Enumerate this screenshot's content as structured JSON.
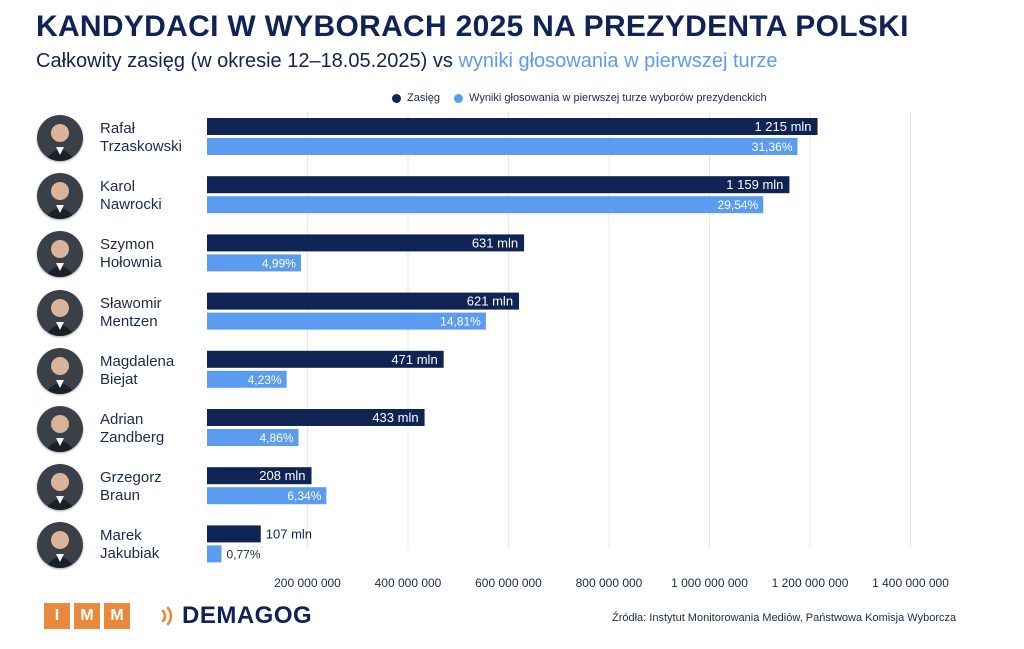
{
  "header": {
    "title": "KANDYDACI W WYBORACH 2025 NA PREZYDENTA POLSKI",
    "subtitle_main": "Całkowity zasięg (w okresie 12–18.05.2025) vs ",
    "subtitle_accent": "wyniki głosowania w pierwszej turze"
  },
  "legend": {
    "reach_label": "Zasięg",
    "votes_label": "Wyniki głosowania w pierwszej turze wyborów prezydenckich"
  },
  "colors": {
    "reach": "#0f2455",
    "votes": "#5b9cf0",
    "brand_orange": "#e8893c"
  },
  "candidates": [
    {
      "first": "Rafał",
      "last": "Trzaskowski"
    },
    {
      "first": "Karol",
      "last": "Nawrocki"
    },
    {
      "first": "Szymon",
      "last": "Hołownia"
    },
    {
      "first": "Sławomir",
      "last": "Mentzen"
    },
    {
      "first": "Magdalena",
      "last": "Biejat"
    },
    {
      "first": "Adrian",
      "last": "Zandberg"
    },
    {
      "first": "Grzegorz",
      "last": "Braun"
    },
    {
      "first": "Marek",
      "last": "Jakubiak"
    }
  ],
  "chart_data": {
    "type": "bar",
    "orientation": "horizontal",
    "categories": [
      "Rafał Trzaskowski",
      "Karol Nawrocki",
      "Szymon Hołownia",
      "Sławomir Mentzen",
      "Magdalena Biejat",
      "Adrian Zandberg",
      "Grzegorz Braun",
      "Marek Jakubiak"
    ],
    "series": [
      {
        "name": "Zasięg",
        "values": [
          1215000000,
          1159000000,
          631000000,
          621000000,
          471000000,
          433000000,
          208000000,
          107000000
        ],
        "labels": [
          "1 215 mln",
          "1 159 mln",
          "631 mln",
          "621 mln",
          "471 mln",
          "433 mln",
          "208 mln",
          "107 mln"
        ]
      },
      {
        "name": "Wyniki głosowania w pierwszej turze wyborów prezydenckich",
        "values": [
          31.36,
          29.54,
          4.99,
          14.81,
          4.23,
          4.86,
          6.34,
          0.77
        ],
        "labels": [
          "31,36%",
          "29,54%",
          "4,99%",
          "14,81%",
          "4,23%",
          "4,86%",
          "6,34%",
          "0,77%"
        ]
      }
    ],
    "x_ticks": [
      "200 000 000",
      "400 000 000",
      "600 000 000",
      "800 000 000",
      "1 000 000 000",
      "1 200 000 000",
      "1 400 000 000"
    ],
    "x_tick_values": [
      200000000,
      400000000,
      600000000,
      800000000,
      1000000000,
      1200000000,
      1400000000
    ],
    "xlim": [
      0,
      1400000000
    ],
    "grid": true,
    "legend_position": "top"
  },
  "footer": {
    "imm_letters": [
      "I",
      "M",
      "M"
    ],
    "demagog": "DEMAGOG",
    "source": "Źródła: Instytut Monitorowania Mediów, Państwowa Komisja Wyborcza"
  }
}
